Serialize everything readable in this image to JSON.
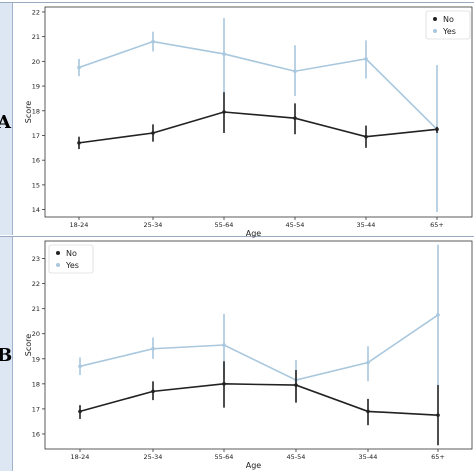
{
  "figure": {
    "panels": [
      {
        "letter": "A"
      },
      {
        "letter": "B"
      }
    ]
  },
  "chart_data": [
    {
      "type": "line",
      "panel": "A",
      "categories": [
        "18-24",
        "25-34",
        "55-64",
        "45-54",
        "35-44",
        "65+"
      ],
      "xlabel": "Age",
      "ylabel": "Score",
      "ylim": [
        13.7,
        22.2
      ],
      "yticks": [
        14,
        15,
        16,
        17,
        18,
        19,
        20,
        21,
        22
      ],
      "legend": {
        "position": "top-right"
      },
      "series": [
        {
          "name": "No",
          "color": "#222222",
          "marker": "filled-circle",
          "values": [
            16.7,
            17.1,
            17.95,
            17.7,
            16.95,
            17.25
          ],
          "err_low": [
            16.45,
            16.75,
            17.1,
            17.05,
            16.5,
            17.1
          ],
          "err_high": [
            16.95,
            17.45,
            18.75,
            18.3,
            17.4,
            17.35
          ]
        },
        {
          "name": "Yes",
          "color": "#a9c7dd",
          "marker": "light-circle",
          "values": [
            19.75,
            20.8,
            20.3,
            19.6,
            20.1,
            17.25
          ],
          "err_low": [
            19.4,
            20.4,
            18.7,
            18.6,
            19.3,
            13.9
          ],
          "err_high": [
            20.1,
            21.2,
            21.75,
            20.65,
            20.85,
            19.85
          ]
        }
      ]
    },
    {
      "type": "line",
      "panel": "B",
      "categories": [
        "18-24",
        "25-34",
        "55-64",
        "45-54",
        "35-44",
        "65+"
      ],
      "xlabel": "Age",
      "ylabel": "Score",
      "ylim": [
        15.4,
        23.7
      ],
      "yticks": [
        16,
        17,
        18,
        19,
        20,
        21,
        22,
        23
      ],
      "legend": {
        "position": "top-left"
      },
      "series": [
        {
          "name": "No",
          "color": "#222222",
          "marker": "filled-circle",
          "values": [
            16.9,
            17.7,
            18.0,
            17.95,
            16.9,
            16.75
          ],
          "err_low": [
            16.6,
            17.35,
            17.05,
            17.25,
            16.35,
            15.55
          ],
          "err_high": [
            17.15,
            18.1,
            18.9,
            18.55,
            17.4,
            17.95
          ]
        },
        {
          "name": "Yes",
          "color": "#a9c7dd",
          "marker": "light-circle",
          "values": [
            18.7,
            19.4,
            19.55,
            18.15,
            18.85,
            20.75
          ],
          "err_low": [
            18.35,
            19.0,
            18.2,
            17.3,
            18.1,
            17.9
          ],
          "err_high": [
            19.05,
            19.85,
            20.8,
            18.95,
            19.5,
            23.55
          ]
        }
      ]
    }
  ]
}
